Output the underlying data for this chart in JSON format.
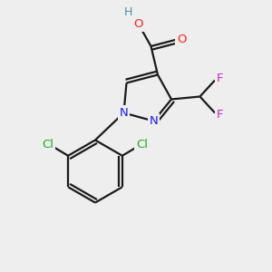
{
  "background_color": "#eeeeee",
  "bond_color": "#1a1a1a",
  "atom_colors": {
    "N": "#1a1aff",
    "O": "#ff2020",
    "H": "#4a9090",
    "Cl": "#22aa22",
    "F": "#cc22cc",
    "C": "#1a1a1a"
  },
  "figsize": [
    3.0,
    3.0
  ],
  "dpi": 100,
  "lw": 1.6,
  "fontsize": 9.5
}
